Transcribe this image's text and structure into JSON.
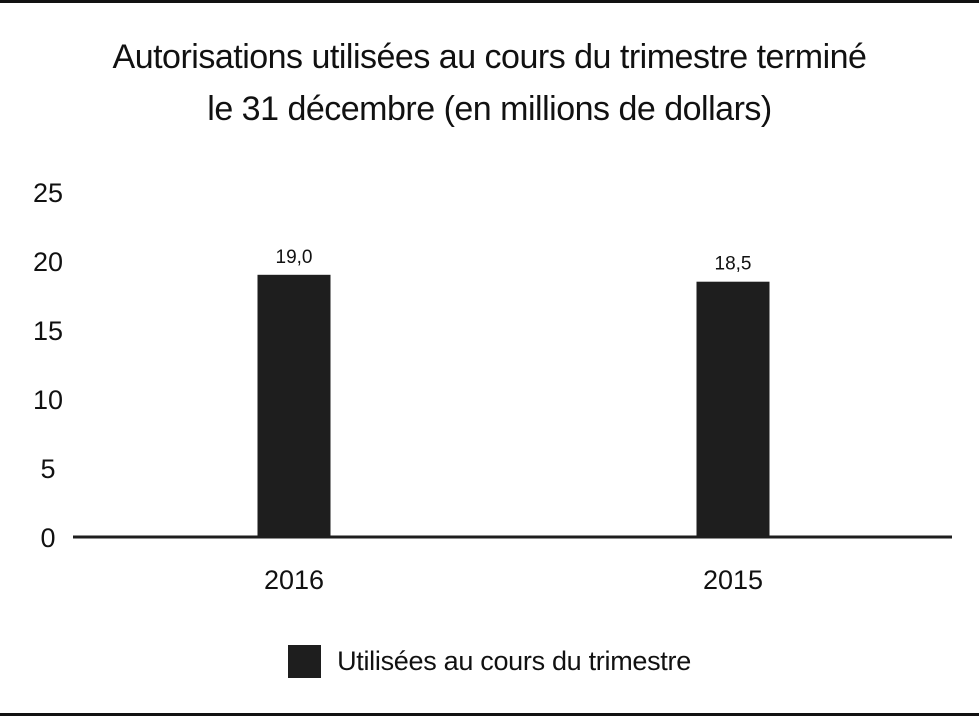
{
  "chart_data": {
    "type": "bar",
    "title_line1": "Autorisations utilisées au cours du trimestre terminé",
    "title_line2": "le 31 décembre (en millions de dollars)",
    "categories": [
      "2016",
      "2015"
    ],
    "series": [
      {
        "name": "Utilisées au cours du trimestre",
        "values": [
          19.0,
          18.5
        ],
        "labels": [
          "19,0",
          "18,5"
        ],
        "color": "#1e1e1e"
      }
    ],
    "ylim": [
      0,
      25
    ],
    "yticks": [
      0,
      5,
      10,
      15,
      20,
      25
    ],
    "grid": false,
    "legend_position": "bottom"
  }
}
